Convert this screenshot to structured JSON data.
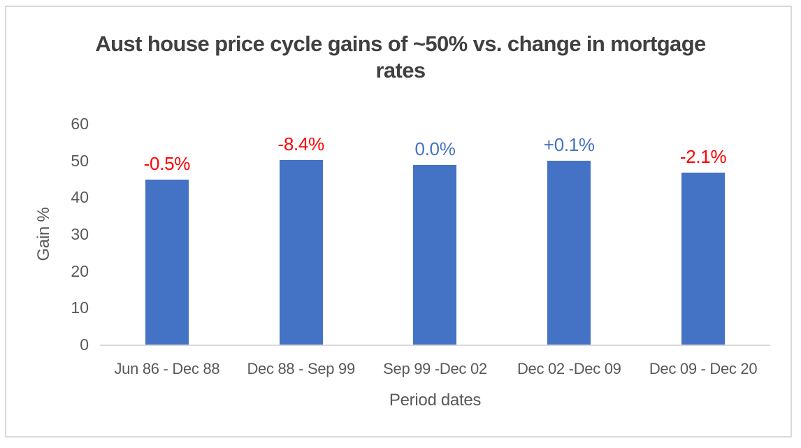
{
  "window": {
    "background": "#FFFFFF",
    "border_color": "#D9D9D9"
  },
  "chart": {
    "title_lines": [
      "Aust house price cycle gains of ~50% vs. change in mortgage",
      "rates"
    ]
  },
  "chart_data": {
    "type": "bar",
    "title": "Aust house price cycle gains of ~50% vs. change in mortgage rates",
    "xlabel": "Period dates",
    "ylabel": "Gain %",
    "ylim": [
      0,
      60
    ],
    "yticks": [
      0,
      10,
      20,
      30,
      40,
      50,
      60
    ],
    "grid": false,
    "legend": "none",
    "categories": [
      "Jun 86 - Dec 88",
      "Dec 88 - Sep 99",
      "Sep 99 -Dec 02",
      "Dec 02 -Dec 09",
      "Dec 09 - Dec 20"
    ],
    "values": [
      44.8,
      50.2,
      48.9,
      50.0,
      46.7
    ],
    "bar_color": "#4472C4",
    "data_labels": [
      {
        "text": "-0.5%",
        "color": "#FF0000"
      },
      {
        "text": "-8.4%",
        "color": "#FF0000"
      },
      {
        "text": "0.0%",
        "color": "#4472C4"
      },
      {
        "text": "+0.1%",
        "color": "#4472C4"
      },
      {
        "text": "-2.1%",
        "color": "#FF0000"
      }
    ],
    "axis_line_color": "#D9D9D9",
    "text_colors": {
      "title": "#404040",
      "axis": "#595959"
    }
  }
}
